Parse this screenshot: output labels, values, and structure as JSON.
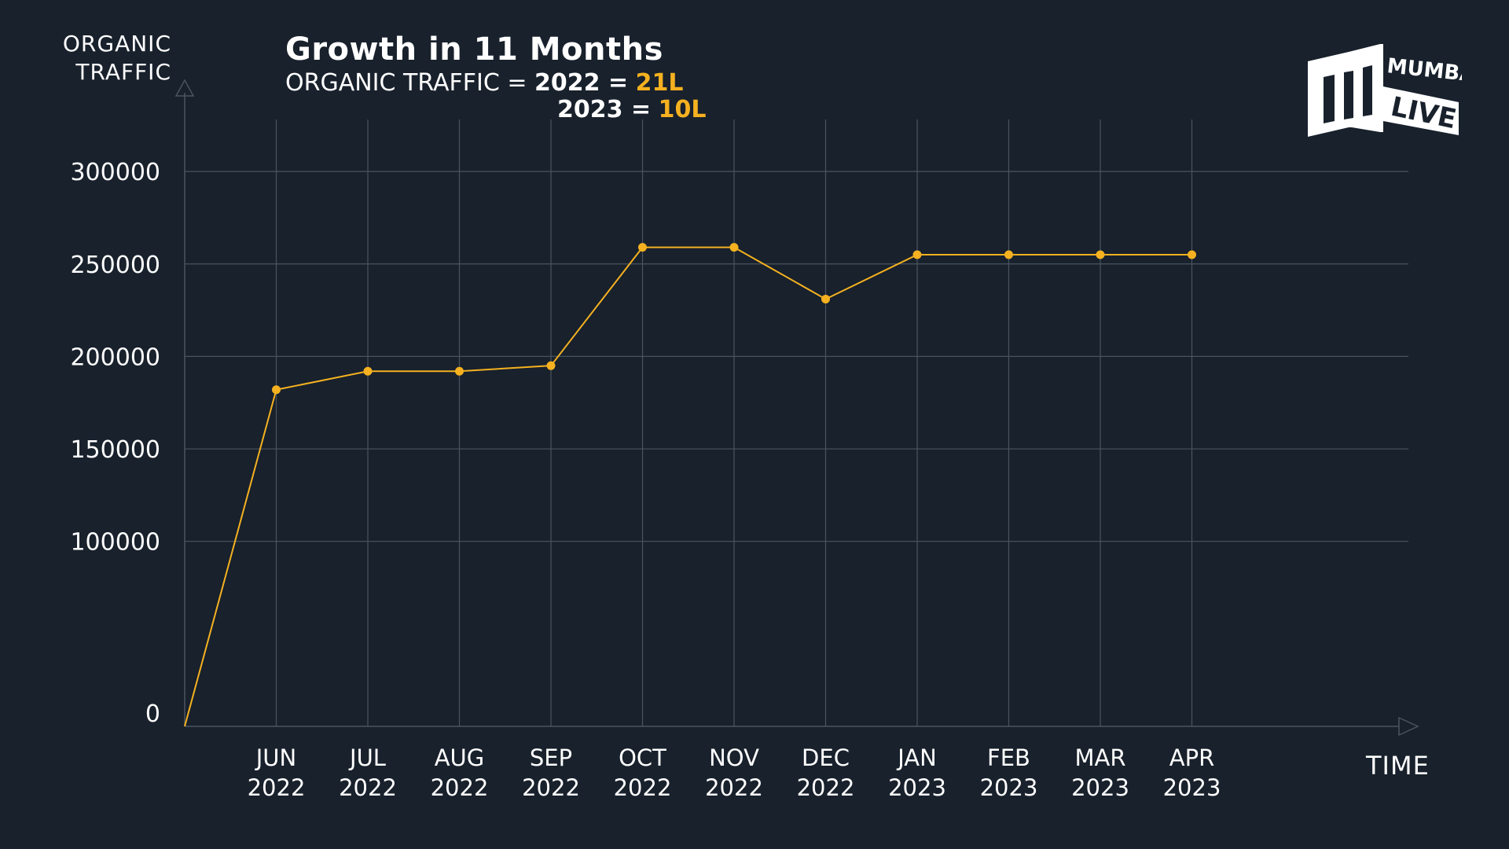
{
  "header": {
    "title": "Growth in 11 Months",
    "subtitle_label": "ORGANIC TRAFFIC",
    "subtitle_eq": "=",
    "row1_year": "2022 =",
    "row1_value": "21L",
    "row2_year": "2023 =",
    "row2_value": "10L"
  },
  "logo": {
    "line1": "MUMBAI",
    "line2": "LIVE",
    "color": "#ffffff"
  },
  "colors": {
    "background": "#18212c",
    "accent": "#f5b120",
    "grid": "#4a545e",
    "text": "#ffffff"
  },
  "chart_data": {
    "type": "line",
    "ylabel_lines": [
      "ORGANIC",
      "TRAFFIC"
    ],
    "xlabel": "TIME",
    "ylim": [
      0,
      340000
    ],
    "yticks": [
      0,
      100000,
      150000,
      200000,
      250000,
      300000
    ],
    "ytick_labels": [
      "0",
      "100000",
      "150000",
      "200000",
      "250000",
      "300000"
    ],
    "categories": [
      [
        "JUN",
        "2022"
      ],
      [
        "JUL",
        "2022"
      ],
      [
        "AUG",
        "2022"
      ],
      [
        "SEP",
        "2022"
      ],
      [
        "OCT",
        "2022"
      ],
      [
        "NOV",
        "2022"
      ],
      [
        "DEC",
        "2022"
      ],
      [
        "JAN",
        "2023"
      ],
      [
        "FEB",
        "2023"
      ],
      [
        "MAR",
        "2023"
      ],
      [
        "APR",
        "2023"
      ]
    ],
    "origin_value": 0,
    "values": [
      182000,
      192000,
      192000,
      195000,
      259000,
      259000,
      231000,
      255000,
      255000,
      255000,
      255000
    ],
    "grid": true
  }
}
